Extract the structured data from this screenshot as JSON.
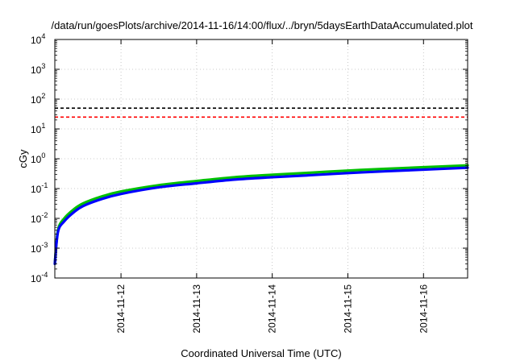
{
  "chart_data": {
    "type": "line",
    "title": "/data/run/goesPlots/archive/2014-11-16/14:00/flux/../bryn/5daysEarthDataAccumulated.plot",
    "xlabel": "Coordinated Universal Time (UTC)",
    "ylabel": "cGy",
    "x_type": "datetime",
    "xlim": [
      "2014-11-11T03:00",
      "2014-11-16T14:00"
    ],
    "x_ticks": [
      "2014-11-12",
      "2014-11-13",
      "2014-11-14",
      "2014-11-15",
      "2014-11-16"
    ],
    "y_scale": "log",
    "ylim": [
      0.0001,
      10000
    ],
    "y_ticks": [
      {
        "base": "10",
        "exp": "-4",
        "value": 0.0001
      },
      {
        "base": "10",
        "exp": "-3",
        "value": 0.001
      },
      {
        "base": "10",
        "exp": "-2",
        "value": 0.01
      },
      {
        "base": "10",
        "exp": "-1",
        "value": 0.1
      },
      {
        "base": "10",
        "exp": "0",
        "value": 1
      },
      {
        "base": "10",
        "exp": "1",
        "value": 10
      },
      {
        "base": "10",
        "exp": "2",
        "value": 100
      },
      {
        "base": "10",
        "exp": "3",
        "value": 1000
      },
      {
        "base": "10",
        "exp": "4",
        "value": 10000
      }
    ],
    "grid": true,
    "legend": "none",
    "series": [
      {
        "color": "#00c000",
        "style": "solid",
        "x": [
          "2014-11-11T03:00",
          "2014-11-11T04:00",
          "2014-11-11T06:00",
          "2014-11-11T09:00",
          "2014-11-11T12:00",
          "2014-11-11T18:00",
          "2014-11-12T00:00",
          "2014-11-12T12:00",
          "2014-11-13T00:00",
          "2014-11-13T12:00",
          "2014-11-14T00:00",
          "2014-11-14T12:00",
          "2014-11-15T00:00",
          "2014-11-15T12:00",
          "2014-11-16T00:00",
          "2014-11-16T14:00"
        ],
        "y": [
          0.0003,
          0.004,
          0.01,
          0.02,
          0.032,
          0.055,
          0.08,
          0.13,
          0.18,
          0.24,
          0.29,
          0.34,
          0.4,
          0.46,
          0.52,
          0.6
        ]
      },
      {
        "color": "#0000ff",
        "style": "solid",
        "x": [
          "2014-11-11T03:00",
          "2014-11-11T04:00",
          "2014-11-11T06:00",
          "2014-11-11T09:00",
          "2014-11-11T12:00",
          "2014-11-11T18:00",
          "2014-11-12T00:00",
          "2014-11-12T12:00",
          "2014-11-13T00:00",
          "2014-11-13T12:00",
          "2014-11-14T00:00",
          "2014-11-14T12:00",
          "2014-11-15T00:00",
          "2014-11-15T12:00",
          "2014-11-16T00:00",
          "2014-11-16T14:00"
        ],
        "y": [
          0.0003,
          0.0035,
          0.008,
          0.016,
          0.026,
          0.045,
          0.066,
          0.11,
          0.15,
          0.2,
          0.24,
          0.28,
          0.33,
          0.38,
          0.43,
          0.5
        ]
      },
      {
        "color": "#000000",
        "style": "dashed",
        "x": [
          "2014-11-11T03:00",
          "2014-11-16T14:00"
        ],
        "y": [
          50,
          50
        ]
      },
      {
        "color": "#ff0000",
        "style": "dashed",
        "x": [
          "2014-11-11T03:00",
          "2014-11-16T14:00"
        ],
        "y": [
          25,
          25
        ]
      }
    ]
  }
}
